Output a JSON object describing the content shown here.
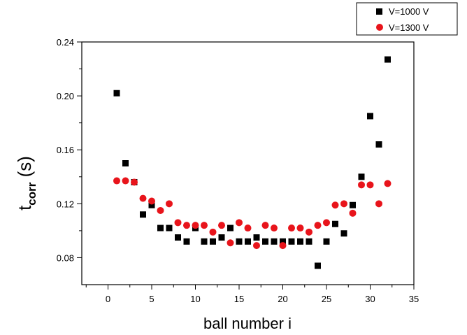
{
  "chart_data": {
    "type": "scatter",
    "xlabel": "ball number i",
    "ylabel_main": "t",
    "ylabel_sub": "corr",
    "ylabel_unit": " (s)",
    "xlim": [
      -3,
      35
    ],
    "ylim": [
      0.06,
      0.24
    ],
    "xticks": [
      0,
      5,
      10,
      15,
      20,
      25,
      30,
      35
    ],
    "yticks": [
      0.08,
      0.12,
      0.16,
      0.2,
      0.24
    ],
    "ytick_labels": [
      "0.08",
      "0.12",
      "0.16",
      "0.20",
      "0.24"
    ],
    "grid": false,
    "legend_position": "top-right",
    "series": [
      {
        "name": "V=1000 V",
        "marker": "square",
        "color": "#000000",
        "x": [
          1,
          2,
          3,
          4,
          5,
          6,
          7,
          8,
          9,
          10,
          11,
          12,
          13,
          14,
          15,
          16,
          17,
          18,
          19,
          20,
          21,
          22,
          23,
          24,
          25,
          26,
          27,
          28,
          29,
          30,
          31,
          32
        ],
        "y": [
          0.202,
          0.15,
          0.136,
          0.112,
          0.119,
          0.102,
          0.102,
          0.095,
          0.092,
          0.102,
          0.092,
          0.092,
          0.095,
          0.102,
          0.092,
          0.092,
          0.095,
          0.092,
          0.092,
          0.092,
          0.092,
          0.092,
          0.092,
          0.074,
          0.092,
          0.105,
          0.098,
          0.119,
          0.14,
          0.185,
          0.164,
          0.227
        ]
      },
      {
        "name": "V=1300 V",
        "marker": "circle",
        "color": "#e8141b",
        "x": [
          1,
          2,
          3,
          4,
          5,
          6,
          7,
          8,
          9,
          10,
          11,
          12,
          13,
          14,
          15,
          16,
          17,
          18,
          19,
          20,
          21,
          22,
          23,
          24,
          25,
          26,
          27,
          28,
          29,
          30,
          31,
          32
        ],
        "y": [
          0.137,
          0.137,
          0.136,
          0.124,
          0.122,
          0.115,
          0.12,
          0.106,
          0.104,
          0.104,
          0.104,
          0.099,
          0.104,
          0.091,
          0.106,
          0.102,
          0.089,
          0.104,
          0.102,
          0.089,
          0.102,
          0.102,
          0.099,
          0.104,
          0.106,
          0.119,
          0.12,
          0.113,
          0.134,
          0.134,
          0.12,
          0.135
        ]
      }
    ]
  }
}
